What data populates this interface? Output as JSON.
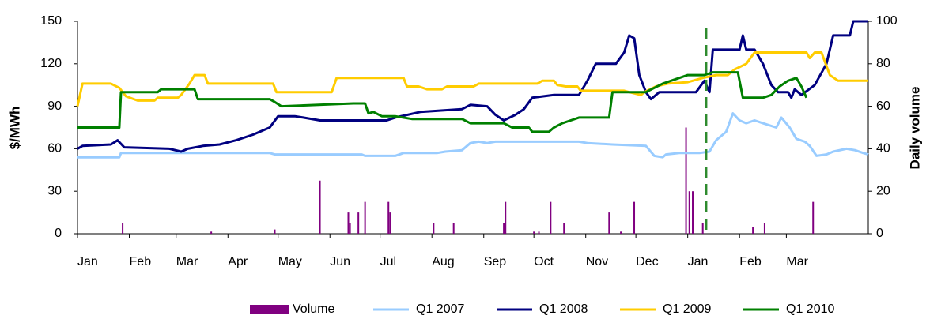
{
  "chart_data": {
    "type": "line",
    "ylabel": "$/MWh",
    "y2label": "Daily volume",
    "xlim": [
      0,
      473
    ],
    "xticks": [
      {
        "value": 0,
        "label": "Jan"
      },
      {
        "value": 31,
        "label": "Feb"
      },
      {
        "value": 59,
        "label": "Mar"
      },
      {
        "value": 90,
        "label": "Apr"
      },
      {
        "value": 120,
        "label": "May"
      },
      {
        "value": 151,
        "label": "Jun"
      },
      {
        "value": 181,
        "label": "Jul"
      },
      {
        "value": 212,
        "label": "Aug"
      },
      {
        "value": 243,
        "label": "Sep"
      },
      {
        "value": 273,
        "label": "Oct"
      },
      {
        "value": 304,
        "label": "Nov"
      },
      {
        "value": 334,
        "label": "Dec"
      },
      {
        "value": 365,
        "label": "Jan"
      },
      {
        "value": 396,
        "label": "Feb"
      },
      {
        "value": 424,
        "label": "Mar"
      }
    ],
    "ylim": [
      0,
      150
    ],
    "yticks": [
      0,
      30,
      60,
      90,
      120,
      150
    ],
    "y2lim": [
      0,
      100
    ],
    "y2ticks": [
      0,
      20,
      40,
      60,
      80,
      100
    ],
    "legend": "bottom",
    "vline": {
      "x": 376,
      "color": "#2e8b2e"
    },
    "series": [
      {
        "name": "Volume",
        "type": "bar",
        "axis": "y2",
        "color": "#800080",
        "x": [
          27,
          80,
          118,
          145,
          162,
          163,
          168,
          172,
          186,
          187,
          213,
          225,
          255,
          256,
          273,
          276,
          283,
          291,
          318,
          325,
          333,
          364,
          366,
          368,
          374,
          404,
          411,
          440
        ],
        "values": [
          5,
          1,
          2,
          25,
          10,
          5,
          10,
          15,
          15,
          10,
          5,
          5,
          5,
          15,
          1,
          1,
          15,
          5,
          10,
          1,
          15,
          50,
          20,
          20,
          5,
          3,
          5,
          15
        ]
      },
      {
        "name": "Q1 2007",
        "color": "#99ccff",
        "x": [
          0,
          25,
          26,
          115,
          118,
          170,
          172,
          190,
          195,
          215,
          220,
          230,
          235,
          240,
          245,
          250,
          300,
          305,
          320,
          340,
          345,
          350,
          352,
          360,
          372,
          378,
          382,
          388,
          392,
          396,
          400,
          405,
          410,
          418,
          421,
          426,
          430,
          435,
          438,
          442,
          448,
          452,
          460,
          465,
          470,
          473
        ],
        "values": [
          54,
          54,
          57,
          57,
          56,
          56,
          55,
          55,
          57,
          57,
          58,
          59,
          64,
          65,
          64,
          65,
          65,
          64,
          63,
          62,
          55,
          54,
          56,
          57,
          57,
          58,
          66,
          72,
          85,
          80,
          78,
          80,
          78,
          75,
          82,
          75,
          67,
          65,
          62,
          55,
          56,
          58,
          60,
          59,
          57,
          56
        ]
      },
      {
        "name": "Q1 2008",
        "color": "#000080",
        "x": [
          0,
          3,
          20,
          24,
          28,
          55,
          62,
          66,
          75,
          85,
          95,
          105,
          115,
          120,
          130,
          135,
          145,
          185,
          190,
          205,
          230,
          235,
          245,
          250,
          255,
          262,
          267,
          272,
          285,
          300,
          305,
          310,
          322,
          327,
          330,
          333,
          336,
          340,
          343,
          348,
          370,
          375,
          378,
          380,
          396,
          398,
          400,
          405,
          410,
          415,
          419,
          425,
          427,
          429,
          433,
          441,
          448,
          452,
          462,
          464,
          473
        ],
        "values": [
          60,
          62,
          63,
          66,
          61,
          60,
          58,
          60,
          62,
          63,
          66,
          70,
          75,
          83,
          83,
          82,
          80,
          80,
          82,
          86,
          88,
          91,
          90,
          84,
          80,
          84,
          88,
          96,
          98,
          98,
          108,
          120,
          120,
          128,
          140,
          138,
          112,
          100,
          95,
          100,
          100,
          108,
          100,
          130,
          130,
          140,
          130,
          130,
          120,
          105,
          100,
          100,
          96,
          102,
          98,
          105,
          120,
          140,
          140,
          150,
          150
        ]
      },
      {
        "name": "Q1 2009",
        "color": "#ffcc00",
        "x": [
          0,
          3,
          20,
          25,
          29,
          36,
          46,
          48,
          60,
          62,
          67,
          70,
          76,
          78,
          117,
          119,
          152,
          155,
          195,
          197,
          204,
          209,
          218,
          221,
          237,
          240,
          275,
          278,
          285,
          287,
          292,
          299,
          301,
          327,
          330,
          337,
          339,
          346,
          353,
          365,
          374,
          382,
          389,
          393,
          400,
          405,
          436,
          438,
          441,
          445,
          450,
          455,
          473
        ],
        "values": [
          90,
          106,
          106,
          103,
          97,
          94,
          94,
          96,
          96,
          98,
          106,
          112,
          112,
          106,
          106,
          100,
          100,
          110,
          110,
          104,
          104,
          102,
          102,
          104,
          104,
          106,
          106,
          108,
          108,
          105,
          104,
          104,
          101,
          101,
          100,
          98,
          100,
          104,
          106,
          107,
          110,
          112,
          112,
          116,
          120,
          128,
          128,
          124,
          128,
          128,
          112,
          108,
          108
        ]
      },
      {
        "name": "Q1 2010",
        "color": "#008000",
        "x": [
          0,
          25,
          26,
          48,
          50,
          70,
          72,
          115,
          118,
          122,
          165,
          172,
          174,
          177,
          182,
          190,
          200,
          230,
          235,
          255,
          260,
          270,
          272,
          282,
          285,
          290,
          295,
          300,
          318,
          320,
          340,
          345,
          350,
          355,
          365,
          375,
          380,
          395,
          398,
          410,
          415,
          420,
          425,
          430,
          433,
          436
        ],
        "values": [
          75,
          75,
          100,
          100,
          102,
          102,
          95,
          95,
          93,
          90,
          92,
          92,
          85,
          86,
          83,
          83,
          81,
          81,
          78,
          78,
          75,
          75,
          72,
          72,
          75,
          78,
          80,
          82,
          82,
          100,
          100,
          103,
          106,
          108,
          112,
          112,
          114,
          114,
          96,
          96,
          98,
          104,
          108,
          110,
          104,
          96
        ]
      }
    ]
  }
}
